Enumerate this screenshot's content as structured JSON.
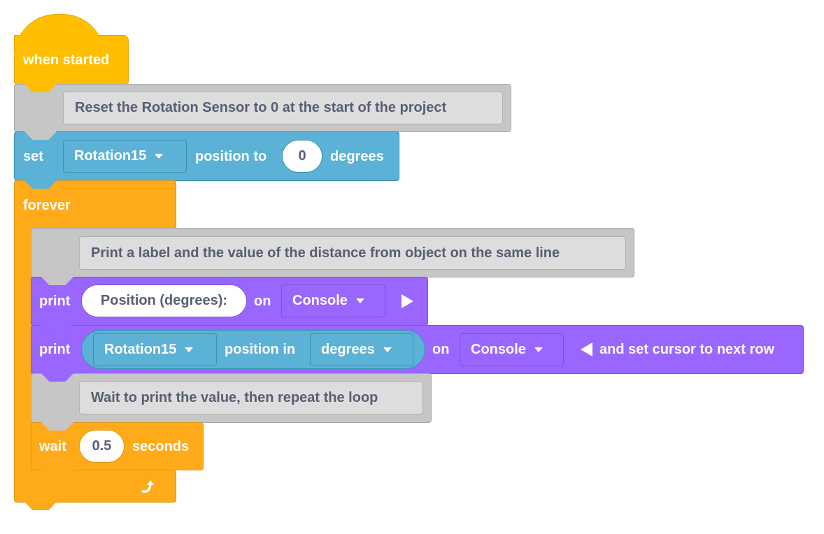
{
  "colors": {
    "events": "#FFBF00",
    "comment": "#C6C6C6",
    "sensing": "#5CB1D6",
    "control": "#FFAB19",
    "looks": "#9966FF"
  },
  "hat": {
    "label": "when started"
  },
  "comment1": {
    "text": "Reset the Rotation Sensor to 0 at the start of the project"
  },
  "set_block": {
    "label": "set",
    "device": "Rotation15",
    "mid": "position to",
    "value": "0",
    "unit": "degrees"
  },
  "forever": {
    "label": "forever",
    "loop_icon": "loop-arrow-icon"
  },
  "comment2": {
    "text": "Print a label and the value of the distance from object on the same line"
  },
  "print1": {
    "label": "print",
    "text": "Position (degrees):",
    "on": "on",
    "target": "Console",
    "expand_icon": "expand-right-icon"
  },
  "print2": {
    "label": "print",
    "device": "Rotation15",
    "mid": "position in",
    "unit": "degrees",
    "on": "on",
    "target": "Console",
    "suffix": "and set cursor to next row",
    "collapse_icon": "collapse-left-icon"
  },
  "comment3": {
    "text": "Wait to print the value, then repeat the loop"
  },
  "wait": {
    "label": "wait",
    "value": "0.5",
    "unit": "seconds"
  }
}
